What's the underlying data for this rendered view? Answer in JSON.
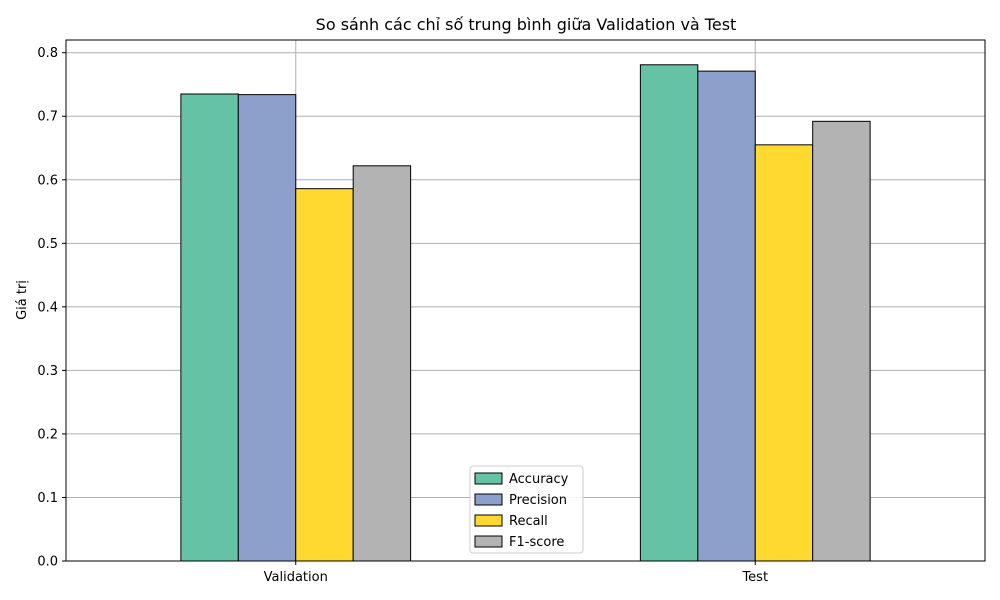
{
  "chart_data": {
    "type": "bar",
    "title": "So sánh các chỉ số trung bình giữa Validation và Test",
    "xlabel": "",
    "ylabel": "Giá trị",
    "categories": [
      "Validation",
      "Test"
    ],
    "series": [
      {
        "name": "Accuracy",
        "color": "#66c2a5",
        "values": [
          0.735,
          0.781
        ]
      },
      {
        "name": "Precision",
        "color": "#8da0cb",
        "values": [
          0.734,
          0.771
        ]
      },
      {
        "name": "Recall",
        "color": "#ffd92f",
        "values": [
          0.586,
          0.655
        ]
      },
      {
        "name": "F1-score",
        "color": "#b3b3b3",
        "values": [
          0.622,
          0.692
        ]
      }
    ],
    "ylim": [
      0,
      0.82
    ],
    "yticks": [
      "0.0",
      "0.1",
      "0.2",
      "0.3",
      "0.4",
      "0.5",
      "0.6",
      "0.7",
      "0.8"
    ],
    "grid": true,
    "legend_position": "bottom-center"
  }
}
